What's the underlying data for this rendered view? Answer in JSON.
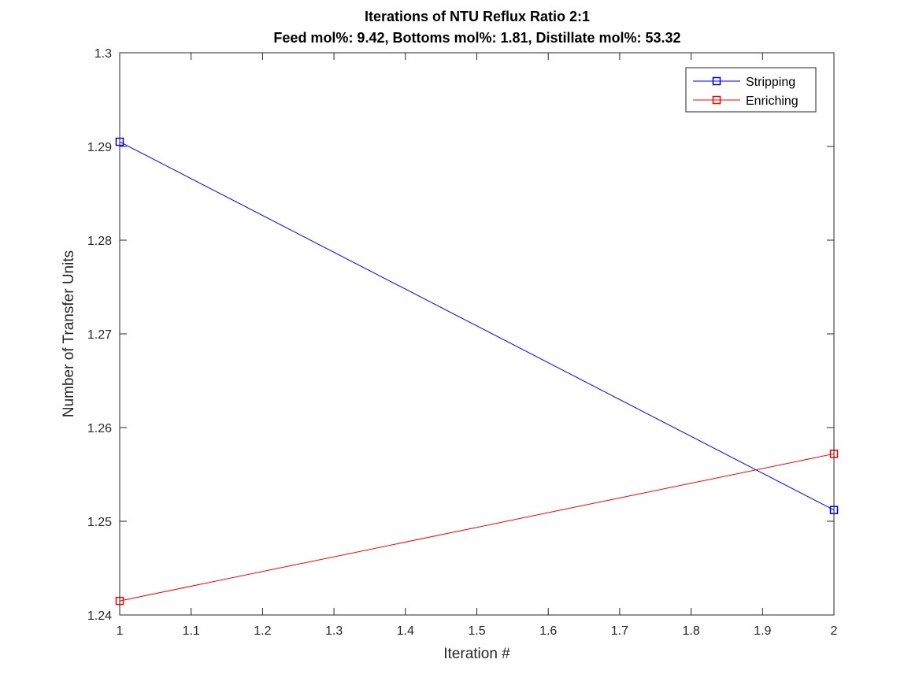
{
  "chart_data": {
    "type": "line",
    "title": "Iterations of NTU Reflux Ratio 2:1",
    "subtitle": "Feed mol%: 9.42, Bottoms mol%: 1.81, Distillate mol%: 53.32",
    "xlabel": "Iteration #",
    "ylabel": "Number of Transfer Units",
    "xlim": [
      1,
      2
    ],
    "ylim": [
      1.24,
      1.3
    ],
    "xticks": [
      1,
      1.1,
      1.2,
      1.3,
      1.4,
      1.5,
      1.6,
      1.7,
      1.8,
      1.9,
      2
    ],
    "xtick_labels": [
      "1",
      "1.1",
      "1.2",
      "1.3",
      "1.4",
      "1.5",
      "1.6",
      "1.7",
      "1.8",
      "1.9",
      "2"
    ],
    "yticks": [
      1.24,
      1.25,
      1.26,
      1.27,
      1.28,
      1.29,
      1.3
    ],
    "ytick_labels": [
      "1.24",
      "1.25",
      "1.26",
      "1.27",
      "1.28",
      "1.29",
      "1.3"
    ],
    "grid": false,
    "legend_position": "top-right",
    "marker": "square",
    "x": [
      1,
      2
    ],
    "series": [
      {
        "name": "Stripping",
        "values": [
          1.2905,
          1.2512
        ],
        "color": "#0000ff"
      },
      {
        "name": "Enriching",
        "values": [
          1.2415,
          1.2572
        ],
        "color": "#ff0000"
      }
    ]
  }
}
